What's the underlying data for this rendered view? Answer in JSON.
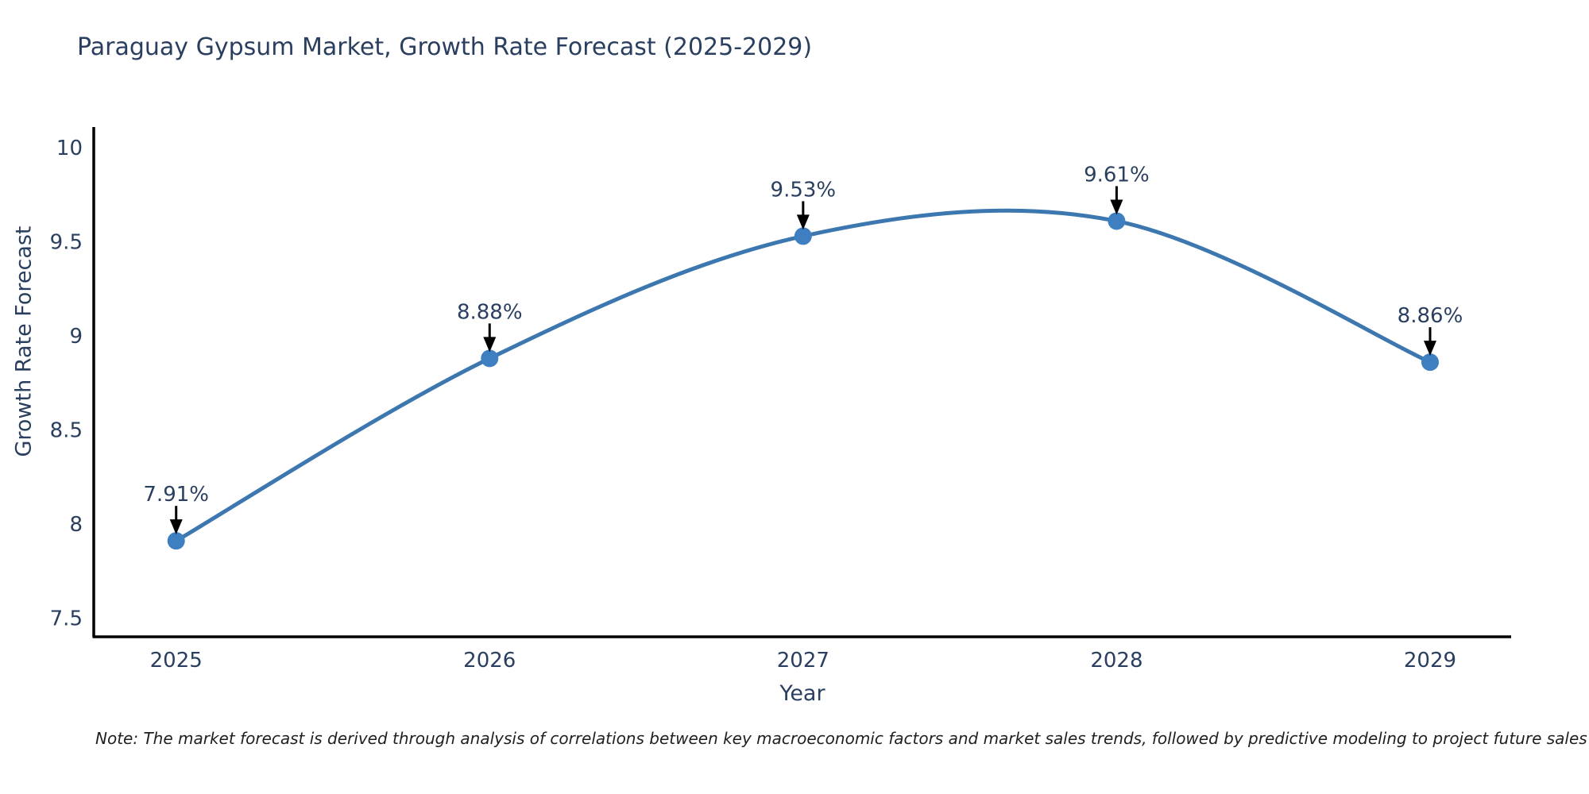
{
  "title": "Paraguay Gypsum Market, Growth Rate Forecast (2025-2029)",
  "note": "Note: The market forecast is derived through analysis of correlations between key macroeconomic factors and market sales trends, followed by predictive modeling to project future sales",
  "chart_data": {
    "type": "line",
    "title": "Paraguay Gypsum Market, Growth Rate Forecast (2025-2029)",
    "xlabel": "Year",
    "ylabel": "Growth Rate Forecast",
    "categories": [
      "2025",
      "2026",
      "2027",
      "2028",
      "2029"
    ],
    "series": [
      {
        "name": "Growth Rate Forecast",
        "values": [
          7.91,
          8.88,
          9.53,
          9.61,
          8.86
        ],
        "point_labels": [
          "7.91%",
          "8.88%",
          "9.53%",
          "9.61%",
          "8.86%"
        ]
      }
    ],
    "yticks": [
      10,
      9.5,
      9,
      8.5,
      8,
      7.5
    ],
    "ylim": [
      7.4,
      10.11
    ],
    "line_shape": "spline",
    "grid": false,
    "legend_position": "none",
    "annotation_style": "value-label-with-down-arrow",
    "colors": {
      "line": "#3c77b0",
      "marker": "#3d7fc0",
      "axis": "#000000",
      "label_text": "#2a3f5f",
      "arrow": "#000000"
    }
  }
}
